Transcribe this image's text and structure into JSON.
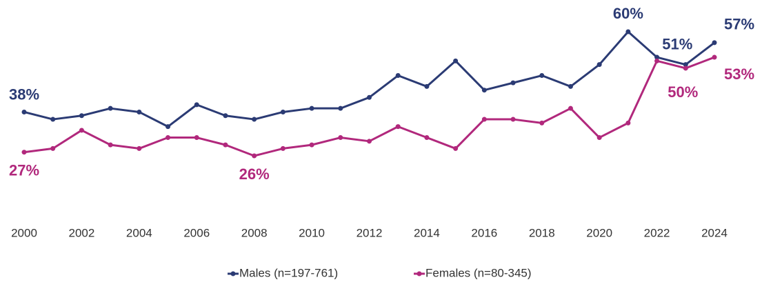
{
  "chart_data": {
    "type": "line",
    "x": [
      2000,
      2001,
      2002,
      2003,
      2004,
      2005,
      2006,
      2007,
      2008,
      2009,
      2010,
      2011,
      2012,
      2013,
      2014,
      2015,
      2016,
      2017,
      2018,
      2019,
      2020,
      2021,
      2022,
      2023,
      2024
    ],
    "xlim": [
      2000,
      2024
    ],
    "xticks": [
      2000,
      2002,
      2004,
      2006,
      2008,
      2010,
      2012,
      2014,
      2016,
      2018,
      2020,
      2022,
      2024
    ],
    "series": [
      {
        "name": "Males (n=197-761)",
        "color": "#2b3b74",
        "values": [
          38,
          36,
          37,
          39,
          38,
          34,
          40,
          37,
          36,
          38,
          39,
          39,
          42,
          48,
          45,
          52,
          44,
          46,
          48,
          45,
          51,
          60,
          53,
          51,
          57
        ],
        "value_labels": [
          "38%",
          null,
          null,
          null,
          null,
          null,
          null,
          null,
          null,
          null,
          null,
          null,
          null,
          null,
          null,
          null,
          null,
          null,
          null,
          null,
          null,
          "60%",
          null,
          "51%",
          "57%"
        ]
      },
      {
        "name": "Females (n=80-345)",
        "color": "#b1287c",
        "values": [
          27,
          28,
          33,
          29,
          28,
          31,
          31,
          29,
          26,
          28,
          29,
          31,
          30,
          34,
          31,
          28,
          36,
          36,
          35,
          39,
          31,
          35,
          52,
          50,
          53
        ],
        "value_labels": [
          "27%",
          null,
          null,
          null,
          null,
          null,
          null,
          null,
          "26%",
          null,
          null,
          null,
          null,
          null,
          null,
          null,
          null,
          null,
          null,
          null,
          null,
          null,
          null,
          "50%",
          "53%"
        ]
      }
    ],
    "legend": "bottom",
    "grid": false
  }
}
